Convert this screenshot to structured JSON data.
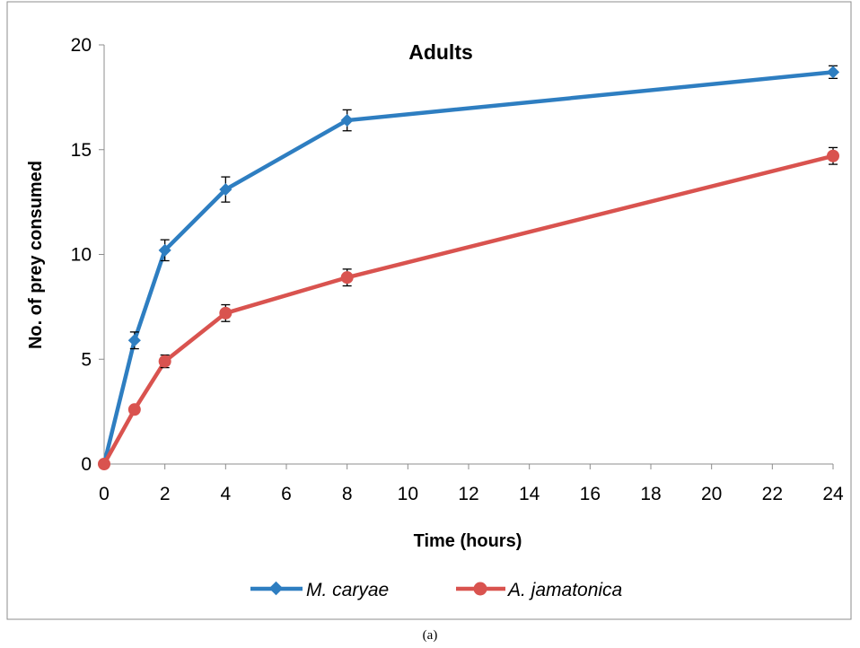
{
  "chart_data": {
    "type": "line",
    "title": "Adults",
    "xlabel": "Time (hours)",
    "ylabel": "No. of prey consumed",
    "x": [
      0,
      1,
      2,
      4,
      8,
      24
    ],
    "xlim": [
      0,
      24
    ],
    "ylim": [
      0,
      20
    ],
    "xticks": [
      "0",
      "2",
      "4",
      "6",
      "8",
      "10",
      "12",
      "14",
      "16",
      "18",
      "20",
      "22",
      "24"
    ],
    "yticks": [
      "0",
      "5",
      "10",
      "15",
      "20"
    ],
    "legend_position": "bottom",
    "series": [
      {
        "name": "M. caryae",
        "color": "#2E7EC1",
        "marker": "diamond",
        "values": [
          0,
          5.9,
          10.2,
          13.1,
          16.4,
          18.7
        ],
        "error": [
          0,
          0.4,
          0.5,
          0.6,
          0.5,
          0.3
        ]
      },
      {
        "name": "A. jamatonica",
        "color": "#D9534F",
        "marker": "circle",
        "values": [
          0,
          2.6,
          4.9,
          7.2,
          8.9,
          14.7
        ],
        "error": [
          0,
          0.1,
          0.3,
          0.4,
          0.4,
          0.4
        ]
      }
    ]
  },
  "caption": "(a)"
}
